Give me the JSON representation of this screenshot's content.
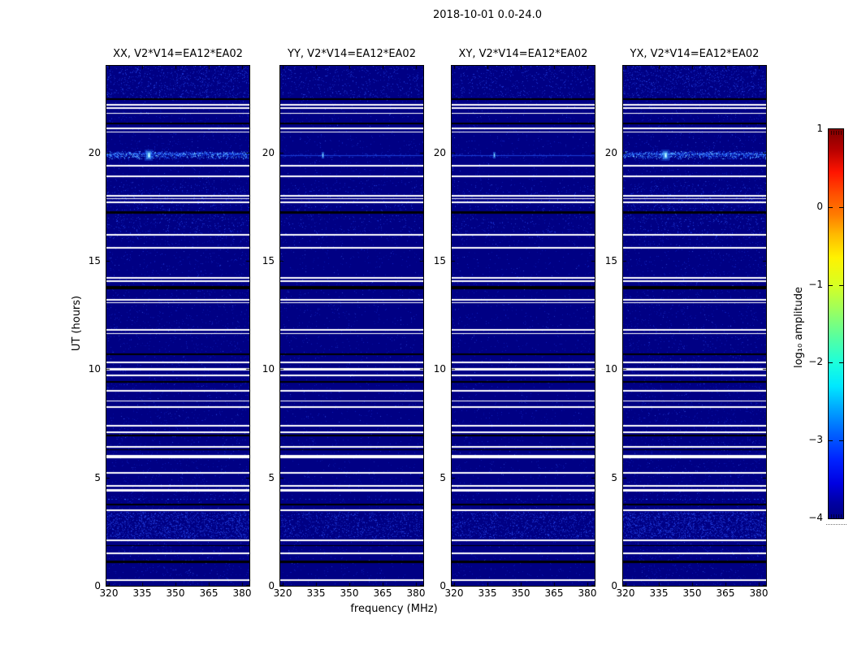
{
  "title": "2018-10-01 0.0-24.0",
  "chart_data": {
    "type": "heatmap",
    "title": "2018-10-01 0.0-24.0",
    "xlabel": "frequency (MHz)",
    "ylabel": "UT (hours)",
    "xlim": [
      319,
      385
    ],
    "ylim": [
      0,
      24
    ],
    "xticks": [
      320,
      335,
      350,
      365,
      380
    ],
    "yticks": [
      0,
      5,
      10,
      15,
      20
    ],
    "background_color": "#000084",
    "background_value": -4,
    "panels": [
      {
        "id": "XX",
        "title": "XX, V2*V14=EA12*EA02",
        "rfi_band_strength": "strong",
        "noise_level": 1.0
      },
      {
        "id": "YY",
        "title": "YY, V2*V14=EA12*EA02",
        "rfi_band_strength": "weak",
        "noise_level": 0.6
      },
      {
        "id": "XY",
        "title": "XY, V2*V14=EA12*EA02",
        "rfi_band_strength": "weak",
        "noise_level": 0.6
      },
      {
        "id": "YX",
        "title": "YX, V2*V14=EA12*EA02",
        "rfi_band_strength": "strong",
        "noise_level": 1.1
      }
    ],
    "flagged_rows_white_ut": [
      [
        22.2,
        2
      ],
      [
        22.05,
        2
      ],
      [
        21.8,
        1
      ],
      [
        21.1,
        2
      ],
      [
        20.95,
        1
      ],
      [
        19.4,
        2
      ],
      [
        18.9,
        2
      ],
      [
        18.0,
        2
      ],
      [
        17.85,
        1
      ],
      [
        17.7,
        2
      ],
      [
        16.2,
        2
      ],
      [
        15.6,
        2
      ],
      [
        14.2,
        2
      ],
      [
        14.05,
        2
      ],
      [
        13.2,
        2
      ],
      [
        13.05,
        1
      ],
      [
        11.8,
        2
      ],
      [
        11.65,
        1
      ],
      [
        10.3,
        2
      ],
      [
        10.0,
        3
      ],
      [
        9.7,
        2
      ],
      [
        9.0,
        2
      ],
      [
        8.55,
        1
      ],
      [
        8.25,
        2
      ],
      [
        7.4,
        2
      ],
      [
        7.1,
        2
      ],
      [
        6.4,
        2
      ],
      [
        5.95,
        4
      ],
      [
        5.2,
        2
      ],
      [
        4.6,
        2
      ],
      [
        4.4,
        3
      ],
      [
        3.5,
        2
      ],
      [
        2.1,
        2
      ],
      [
        1.5,
        2
      ],
      [
        0.25,
        2
      ]
    ],
    "missing_rows_black_ut": [
      [
        22.45,
        2
      ],
      [
        21.35,
        2
      ],
      [
        17.25,
        3
      ],
      [
        13.75,
        4
      ],
      [
        10.7,
        2
      ],
      [
        9.4,
        2
      ],
      [
        6.95,
        2
      ],
      [
        6.3,
        1
      ],
      [
        3.75,
        2
      ],
      [
        1.85,
        1
      ],
      [
        1.1,
        3
      ]
    ],
    "features": {
      "rfi_band": {
        "ut_range": [
          19.72,
          20.08
        ],
        "peak_freq_mhz": 338
      },
      "dotted_rows": [
        {
          "ut": 16.95,
          "strength": 0.5
        },
        {
          "ut": 4.0,
          "strength": 1.0
        }
      ],
      "noisy_regions_ut": [
        {
          "range": [
            2.2,
            3.4
          ],
          "density": 1400
        },
        {
          "range": [
            22.5,
            24.0
          ],
          "density": 600
        },
        {
          "range": [
            16.0,
            18.5
          ],
          "density": 500
        }
      ]
    },
    "colorbar": {
      "label": "log₁₀ amplitude",
      "ticks": [
        1,
        0,
        -1,
        -2,
        -3,
        -4
      ],
      "dash_ticks": [
        0,
        -1,
        -2,
        -3
      ],
      "vmin": -4,
      "vmax": 1,
      "colormap": "jet"
    }
  }
}
